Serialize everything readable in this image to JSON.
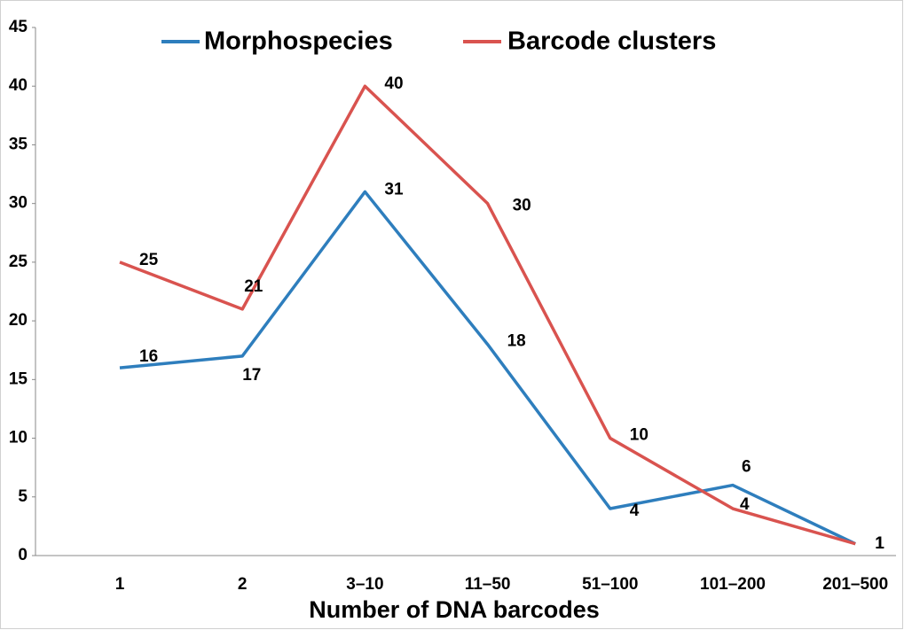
{
  "chart_data": {
    "type": "line",
    "x_label": "Number of DNA barcodes",
    "categories": [
      "1",
      "2",
      "3–10",
      "11–50",
      "51–100",
      "101–200",
      "201–500"
    ],
    "series": [
      {
        "name": "Morphospecies",
        "color": "#2e7ebd",
        "values": [
          16,
          17,
          31,
          18,
          4,
          6,
          1
        ]
      },
      {
        "name": "Barcode clusters",
        "color": "#d9534f",
        "values": [
          25,
          21,
          40,
          30,
          10,
          4,
          1
        ]
      }
    ],
    "ylim": [
      0,
      45
    ],
    "yticks": [
      0,
      5,
      10,
      15,
      20,
      25,
      30,
      35,
      40,
      45
    ],
    "legend": "top",
    "grid": false
  }
}
